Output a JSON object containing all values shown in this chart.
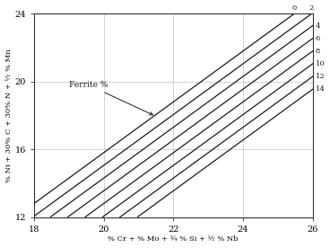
{
  "xlim": [
    18,
    26
  ],
  "ylim": [
    12,
    24
  ],
  "xticks": [
    18,
    20,
    22,
    24,
    26
  ],
  "yticks": [
    12,
    16,
    20,
    24
  ],
  "xlabel": "% Cr + % Mo + ¾ % Si + ½ % Nb",
  "ylabel": "% Ni + 30% C + 30% N + ½ % Mn",
  "ferrite_labels": [
    "0",
    "2",
    "4",
    "6",
    "8",
    "10",
    "12",
    "14"
  ],
  "line_color": "#1a1a1a",
  "background_color": "#ffffff",
  "grid_color": "#aaaaaa",
  "annotation_text": "Ferrite %",
  "figsize": [
    3.68,
    2.76
  ],
  "dpi": 100,
  "slope": 1.5,
  "b0": -21.0,
  "b_step": -1.05
}
